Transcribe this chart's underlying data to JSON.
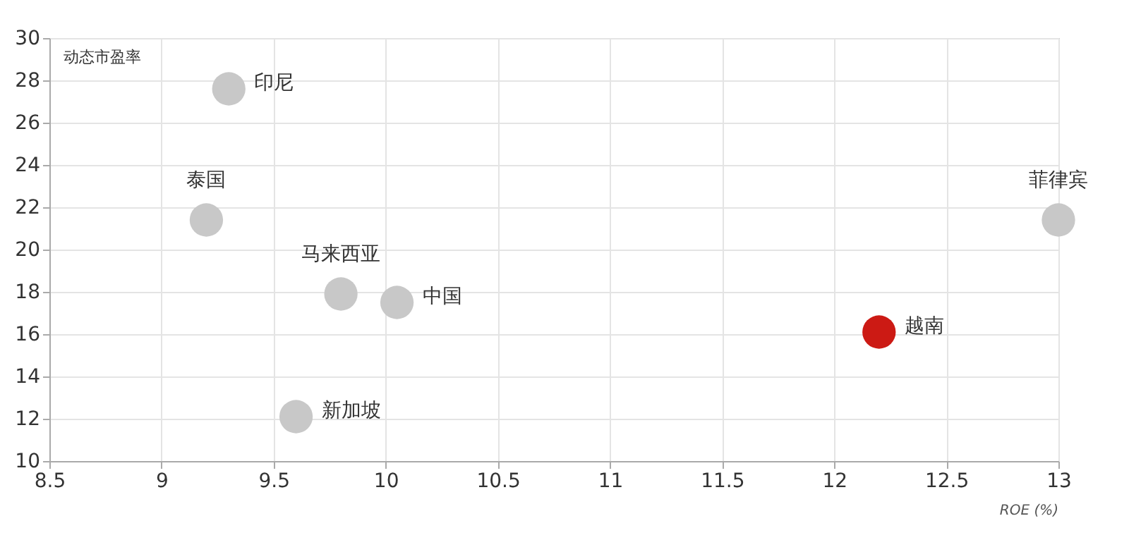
{
  "chart_data": {
    "type": "scatter",
    "xlabel": "ROE (%)",
    "ylabel": "动态市盈率",
    "x": [
      9.3,
      9.2,
      9.8,
      10.05,
      9.6,
      13.0,
      12.2
    ],
    "values": [
      27.6,
      21.4,
      17.9,
      17.5,
      12.1,
      21.4,
      16.1
    ],
    "colors": [
      "#c8c8c8",
      "#c8c8c8",
      "#c8c8c8",
      "#c8c8c8",
      "#c8c8c8",
      "#c8c8c8",
      "#cc1a14"
    ],
    "annotations": [
      {
        "text": "印尼",
        "x": 9.3,
        "y": 27.6
      },
      {
        "text": "泰国",
        "x": 9.2,
        "y": 21.4
      },
      {
        "text": "马来西亚",
        "x": 9.8,
        "y": 17.9
      },
      {
        "text": "中国",
        "x": 10.05,
        "y": 17.5
      },
      {
        "text": "新加坡",
        "x": 9.6,
        "y": 12.1
      },
      {
        "text": "菲律宾",
        "x": 13.0,
        "y": 21.4
      },
      {
        "text": "越南",
        "x": 12.2,
        "y": 16.1
      }
    ],
    "xlim": [
      8.5,
      13
    ],
    "xticks": [
      8.5,
      9,
      9.5,
      10,
      10.5,
      11,
      11.5,
      12,
      12.5,
      13
    ],
    "ylim": [
      10,
      30
    ],
    "yticks": [
      10,
      12,
      14,
      16,
      18,
      20,
      22,
      24,
      26,
      28,
      30
    ],
    "grid": true,
    "marker": "circle"
  }
}
